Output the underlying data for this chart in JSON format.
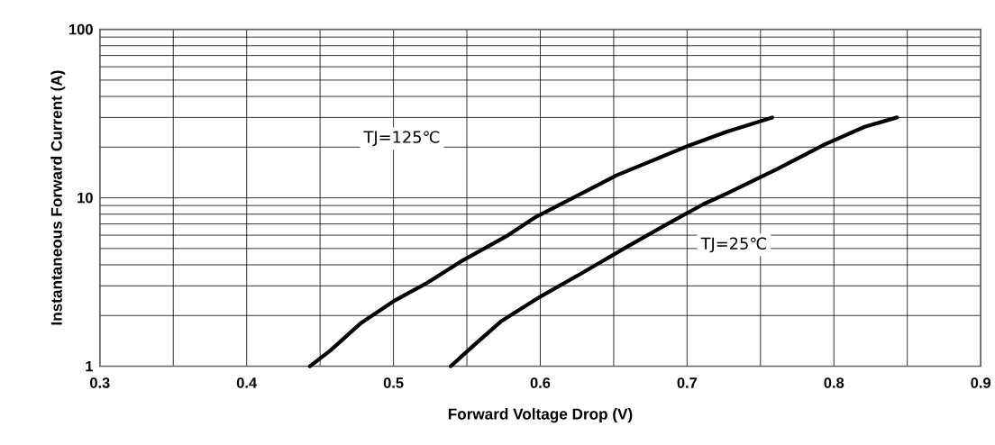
{
  "chart_data": {
    "type": "line",
    "xlabel": "Forward Voltage Drop (V)",
    "ylabel": "Instantaneous Forward Current (A)",
    "series": [
      {
        "color": "#000000",
        "x": [
          0.443,
          0.457,
          0.478,
          0.5,
          0.522,
          0.545,
          0.577,
          0.597,
          0.628,
          0.652,
          0.701,
          0.727,
          0.758
        ],
        "values": [
          1,
          1.24,
          1.81,
          2.43,
          3.09,
          4.14,
          5.92,
          7.7,
          10.6,
          13.6,
          20.4,
          24.7,
          30
        ]
      },
      {
        "color": "#000000",
        "x": [
          0.539,
          0.553,
          0.573,
          0.6,
          0.628,
          0.66,
          0.683,
          0.711,
          0.727,
          0.762,
          0.794,
          0.821,
          0.843
        ],
        "values": [
          1,
          1.29,
          1.84,
          2.59,
          3.56,
          5.17,
          6.72,
          9.16,
          10.6,
          14.9,
          20.8,
          26.4,
          30
        ]
      }
    ],
    "annotations": [
      "TJ=125℃",
      "TJ=25℃"
    ],
    "log": "y",
    "grid": true,
    "marker": "none",
    "line_style": "solid",
    "xlim": [
      0.3,
      0.9
    ],
    "ylim": [
      1,
      100
    ],
    "xticks": [
      0.3,
      {
        "value": 0.35,
        "label": null
      },
      0.4,
      {
        "value": 0.45,
        "label": null
      },
      0.5,
      {
        "value": 0.55,
        "label": null
      },
      0.6,
      {
        "value": 0.65,
        "label": null
      },
      0.7,
      {
        "value": 0.75,
        "label": null
      },
      0.8,
      {
        "value": 0.85,
        "label": null
      },
      0.9
    ],
    "yticks": [
      1,
      {
        "value": 2,
        "label": null
      },
      {
        "value": 3,
        "label": null
      },
      {
        "value": 4,
        "label": null
      },
      {
        "value": 5,
        "label": null
      },
      {
        "value": 6,
        "label": null
      },
      {
        "value": 7,
        "label": null
      },
      {
        "value": 8,
        "label": null
      },
      {
        "value": 9,
        "label": null
      },
      10,
      {
        "value": 20,
        "label": null
      },
      {
        "value": 30,
        "label": null
      },
      {
        "value": 40,
        "label": null
      },
      {
        "value": 50,
        "label": null
      },
      {
        "value": 60,
        "label": null
      },
      {
        "value": 70,
        "label": null
      },
      {
        "value": 80,
        "label": null
      },
      {
        "value": 90,
        "label": null
      },
      100
    ]
  }
}
